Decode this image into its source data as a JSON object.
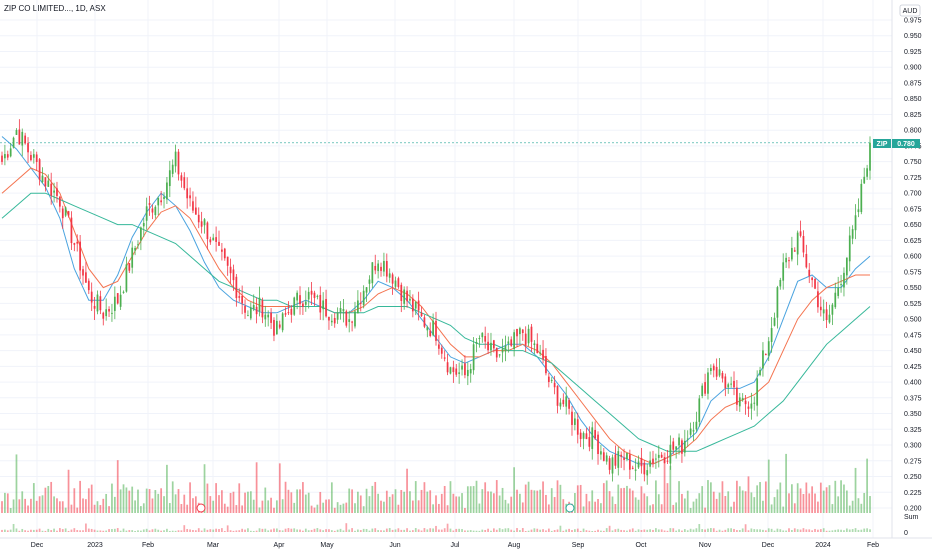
{
  "header": {
    "title": "ZIP CO LIMITED..., 1D, ASX"
  },
  "currency": "AUD",
  "vol_label": "Sum",
  "price_tag": {
    "symbol": "ZIP",
    "value": "0.780"
  },
  "colors": {
    "up": "#4caf50",
    "down": "#f23645",
    "sma_fast": "#4aa3df",
    "sma_mid": "#f4734f",
    "sma_slow": "#37b89a",
    "priceline": "#26a69a"
  },
  "chart_data": {
    "type": "candlestick",
    "ylim": [
      0.2,
      0.975
    ],
    "y_ticks": [
      "0.975",
      "0.950",
      "0.925",
      "0.900",
      "0.875",
      "0.850",
      "0.825",
      "0.800",
      "0.775",
      "0.750",
      "0.725",
      "0.700",
      "0.675",
      "0.650",
      "0.625",
      "0.600",
      "0.575",
      "0.550",
      "0.525",
      "0.500",
      "0.475",
      "0.450",
      "0.425",
      "0.400",
      "0.375",
      "0.350",
      "0.325",
      "0.300",
      "0.275",
      "0.250",
      "0.225",
      "0.200"
    ],
    "x_ticks": [
      "Dec",
      "2023",
      "Feb",
      "Mar",
      "Apr",
      "May",
      "Jun",
      "Jul",
      "Aug",
      "Sep",
      "Oct",
      "Nov",
      "Dec",
      "2024",
      "Feb"
    ],
    "last_price": 0.78,
    "lower_axis_value": "0",
    "close_anchors": [
      0.75,
      0.8,
      0.76,
      0.72,
      0.69,
      0.62,
      0.54,
      0.51,
      0.53,
      0.6,
      0.67,
      0.7,
      0.75,
      0.68,
      0.65,
      0.6,
      0.56,
      0.51,
      0.52,
      0.48,
      0.52,
      0.54,
      0.52,
      0.51,
      0.5,
      0.55,
      0.6,
      0.57,
      0.53,
      0.5,
      0.48,
      0.42,
      0.41,
      0.47,
      0.44,
      0.45,
      0.48,
      0.45,
      0.39,
      0.36,
      0.32,
      0.31,
      0.27,
      0.28,
      0.26,
      0.28,
      0.29,
      0.3,
      0.35,
      0.43,
      0.4,
      0.36,
      0.38,
      0.47,
      0.58,
      0.63,
      0.56,
      0.49,
      0.57,
      0.65,
      0.78
    ],
    "sma_fast": [
      0.79,
      0.77,
      0.74,
      0.71,
      0.66,
      0.58,
      0.53,
      0.53,
      0.57,
      0.63,
      0.67,
      0.7,
      0.68,
      0.64,
      0.59,
      0.55,
      0.53,
      0.52,
      0.51,
      0.51,
      0.52,
      0.53,
      0.52,
      0.51,
      0.51,
      0.53,
      0.56,
      0.55,
      0.53,
      0.5,
      0.47,
      0.44,
      0.43,
      0.44,
      0.45,
      0.46,
      0.46,
      0.44,
      0.41,
      0.38,
      0.34,
      0.31,
      0.29,
      0.28,
      0.27,
      0.27,
      0.28,
      0.3,
      0.32,
      0.37,
      0.39,
      0.39,
      0.4,
      0.44,
      0.5,
      0.56,
      0.57,
      0.55,
      0.55,
      0.58,
      0.6
    ],
    "sma_mid": [
      0.7,
      0.72,
      0.74,
      0.73,
      0.7,
      0.64,
      0.58,
      0.55,
      0.56,
      0.6,
      0.64,
      0.67,
      0.68,
      0.66,
      0.62,
      0.58,
      0.55,
      0.53,
      0.52,
      0.52,
      0.52,
      0.52,
      0.52,
      0.51,
      0.51,
      0.52,
      0.54,
      0.55,
      0.54,
      0.52,
      0.49,
      0.46,
      0.44,
      0.44,
      0.45,
      0.45,
      0.46,
      0.45,
      0.43,
      0.4,
      0.37,
      0.34,
      0.31,
      0.29,
      0.28,
      0.27,
      0.28,
      0.29,
      0.31,
      0.34,
      0.36,
      0.37,
      0.38,
      0.4,
      0.45,
      0.5,
      0.53,
      0.55,
      0.56,
      0.57,
      0.57
    ],
    "sma_slow": [
      0.66,
      0.68,
      0.7,
      0.7,
      0.69,
      0.68,
      0.67,
      0.66,
      0.65,
      0.65,
      0.64,
      0.63,
      0.62,
      0.6,
      0.58,
      0.56,
      0.55,
      0.54,
      0.53,
      0.53,
      0.52,
      0.52,
      0.52,
      0.51,
      0.51,
      0.51,
      0.52,
      0.52,
      0.52,
      0.51,
      0.5,
      0.49,
      0.47,
      0.46,
      0.46,
      0.45,
      0.45,
      0.44,
      0.43,
      0.41,
      0.39,
      0.37,
      0.35,
      0.33,
      0.31,
      0.3,
      0.29,
      0.29,
      0.29,
      0.3,
      0.31,
      0.32,
      0.33,
      0.35,
      0.37,
      0.4,
      0.43,
      0.46,
      0.48,
      0.5,
      0.52
    ]
  }
}
